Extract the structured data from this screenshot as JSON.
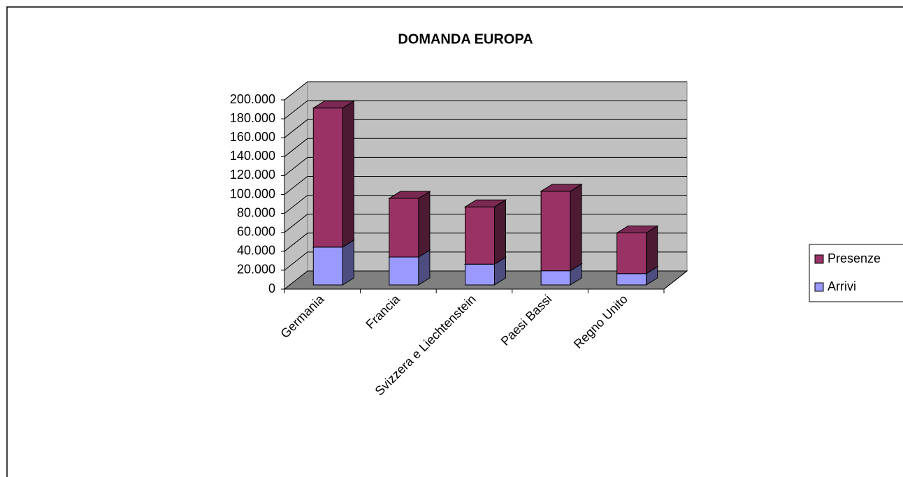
{
  "chart_data": {
    "type": "bar3d_stacked",
    "title": "DOMANDA EUROPA",
    "categories": [
      "Germania",
      "Francia",
      "Svizzera e Liechtenstein",
      "Paesi Bassi",
      "Regno Unito"
    ],
    "series": [
      {
        "name": "Arrivi",
        "color": "#9999ff",
        "values": [
          40000,
          29500,
          22000,
          15000,
          12000
        ]
      },
      {
        "name": "Presenze",
        "color": "#993366",
        "values": [
          147000,
          62000,
          60500,
          84000,
          43000
        ]
      }
    ],
    "ylim": [
      0,
      200000
    ],
    "yticks": [
      0,
      {
        "value": 20000,
        "label": "20.000"
      },
      {
        "value": 40000,
        "label": "40.000"
      },
      {
        "value": 60000,
        "label": "60.000"
      },
      {
        "value": 80000,
        "label": "80.000"
      },
      {
        "value": 100000,
        "label": "100.000"
      },
      {
        "value": 120000,
        "label": "120.000"
      },
      {
        "value": 140000,
        "label": "140.000"
      },
      {
        "value": 160000,
        "label": "160.000"
      },
      {
        "value": 180000,
        "label": "180.000"
      },
      {
        "value": 200000,
        "label": "200.000"
      }
    ],
    "grid": true,
    "legend": "right"
  }
}
